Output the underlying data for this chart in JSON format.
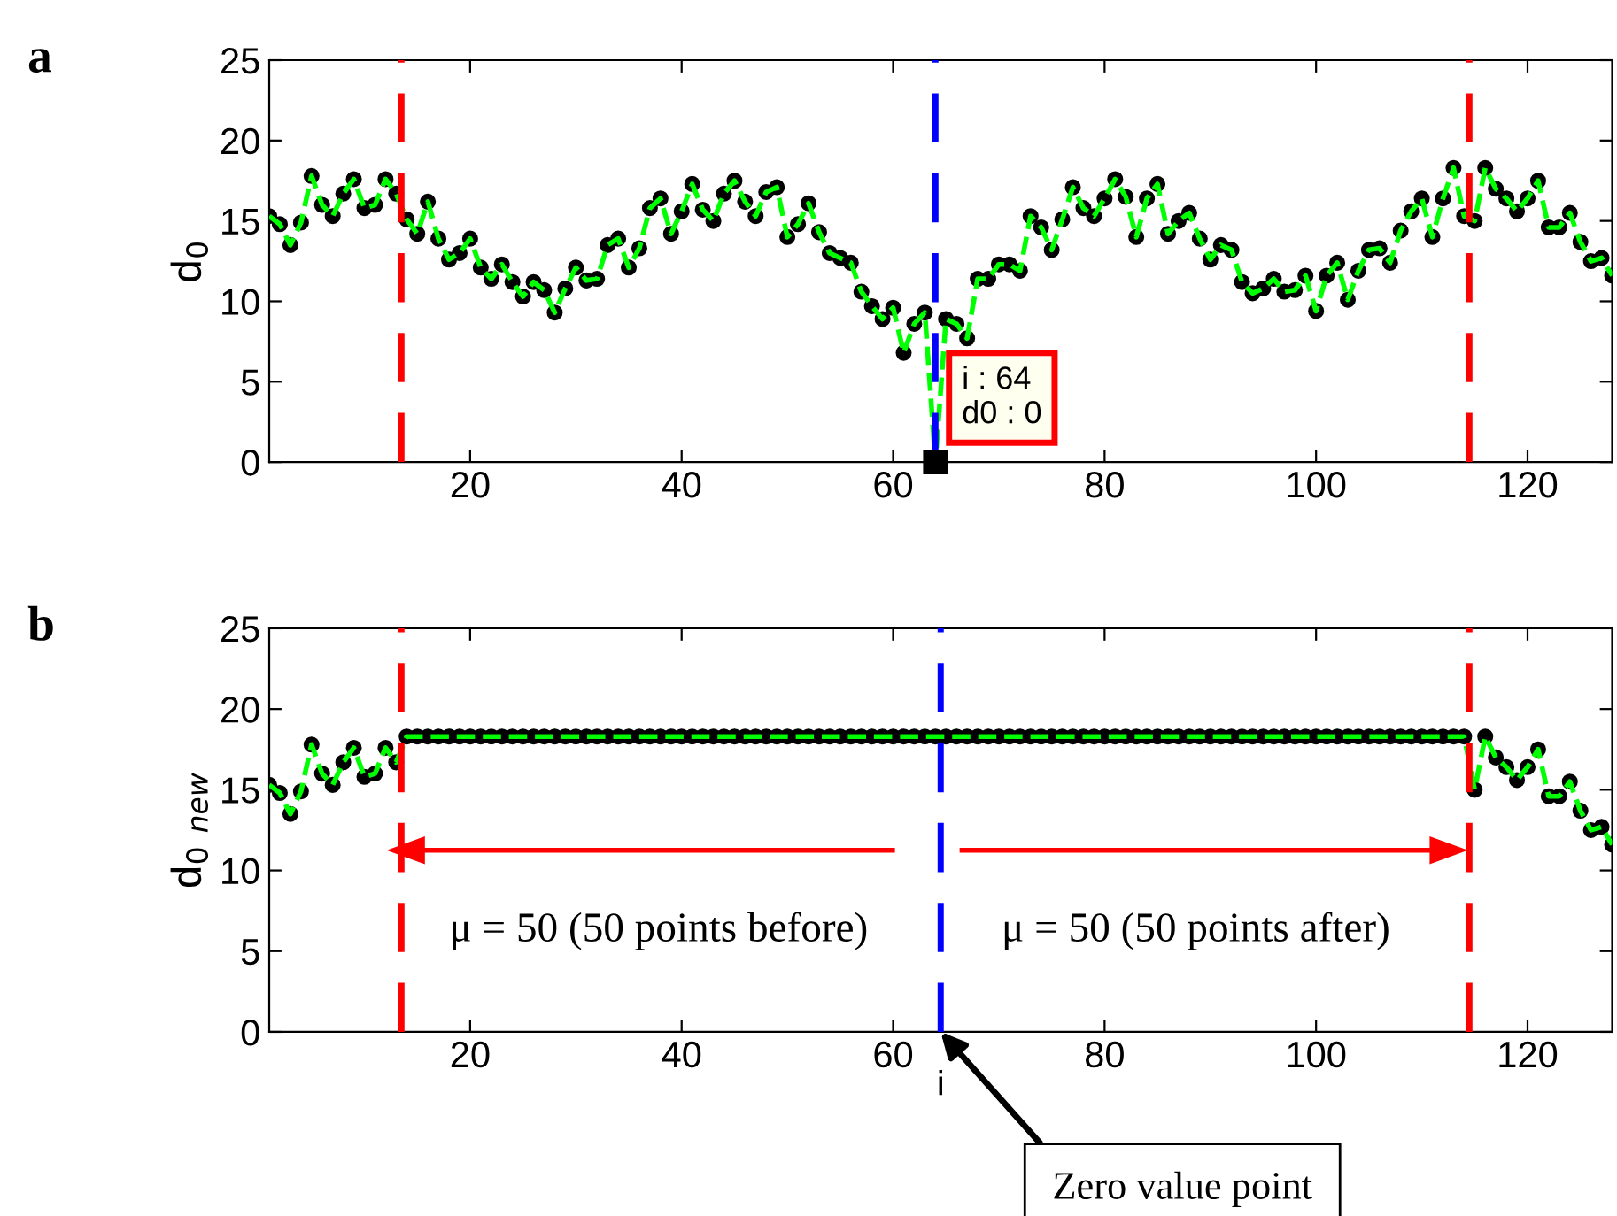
{
  "chart_data": [
    {
      "type": "line",
      "ylabel": "d$_{0}$",
      "x": [
        1,
        2,
        3,
        4,
        5,
        6,
        7,
        8,
        9,
        10,
        11,
        12,
        13,
        14,
        15,
        16,
        17,
        18,
        19,
        20,
        21,
        22,
        23,
        24,
        25,
        26,
        27,
        28,
        29,
        30,
        31,
        32,
        33,
        34,
        35,
        36,
        37,
        38,
        39,
        40,
        41,
        42,
        43,
        44,
        45,
        46,
        47,
        48,
        49,
        50,
        51,
        52,
        53,
        54,
        55,
        56,
        57,
        58,
        59,
        60,
        61,
        62,
        63,
        64,
        65,
        66,
        67,
        68,
        69,
        70,
        71,
        72,
        73,
        74,
        75,
        76,
        77,
        78,
        79,
        80,
        81,
        82,
        83,
        84,
        85,
        86,
        87,
        88,
        89,
        90,
        91,
        92,
        93,
        94,
        95,
        96,
        97,
        98,
        99,
        100,
        101,
        102,
        103,
        104,
        105,
        106,
        107,
        108,
        109,
        110,
        111,
        112,
        113,
        114,
        115,
        116,
        117,
        118,
        119,
        120,
        121,
        122,
        123,
        124,
        125,
        126,
        127,
        128
      ],
      "series": [
        {
          "color": "#00ff00",
          "values": [
            15.3,
            14.8,
            13.5,
            14.9,
            17.8,
            16.0,
            15.3,
            16.7,
            17.6,
            15.8,
            16.0,
            17.6,
            16.7,
            15.1,
            14.2,
            16.2,
            13.9,
            12.6,
            13.0,
            13.9,
            12.1,
            11.4,
            12.3,
            11.2,
            10.3,
            11.2,
            10.7,
            9.3,
            10.8,
            12.1,
            11.3,
            11.4,
            13.5,
            13.9,
            12.1,
            13.3,
            15.8,
            16.4,
            14.2,
            15.6,
            17.3,
            15.7,
            15.0,
            16.7,
            17.5,
            16.2,
            15.3,
            16.8,
            17.1,
            14.0,
            14.8,
            16.1,
            14.3,
            13.0,
            12.7,
            12.4,
            10.6,
            9.7,
            8.9,
            9.6,
            6.8,
            8.6,
            9.3,
            0,
            8.9,
            8.6,
            7.7,
            11.4,
            11.4,
            12.3,
            12.3,
            11.9,
            15.3,
            14.6,
            13.2,
            15.1,
            17.1,
            15.8,
            15.3,
            16.4,
            17.6,
            16.5,
            14.0,
            16.4,
            17.3,
            14.2,
            15.0,
            15.5,
            13.9,
            12.6,
            13.5,
            13.2,
            11.2,
            10.5,
            10.8,
            11.4,
            10.6,
            10.7,
            11.6,
            9.4,
            11.6,
            12.4,
            10.1,
            11.9,
            13.2,
            13.3,
            12.4,
            14.4,
            15.6,
            16.4,
            14.0,
            16.4,
            18.3,
            15.3,
            15.0,
            18.3,
            17.0,
            16.4,
            15.6,
            16.4,
            17.5,
            14.6,
            14.6,
            15.5,
            13.7,
            12.5,
            12.7,
            11.6
          ]
        }
      ],
      "marker": "circle",
      "line_style": "dashed",
      "grid": false,
      "xlim": [
        1,
        128
      ],
      "xticks": [
        20,
        40,
        60,
        80,
        100,
        120
      ],
      "ylim": [
        0,
        25
      ],
      "yticks": [
        0,
        5,
        10,
        15,
        20,
        25
      ],
      "ref_lines": [
        {
          "axis": "x",
          "value": 13.5,
          "color": "#ff0000",
          "line_style": "dashed"
        },
        {
          "axis": "x",
          "value": 64,
          "color": "#0000ff",
          "line_style": "dashed"
        },
        {
          "axis": "x",
          "value": 114.5,
          "color": "#ff0000",
          "line_style": "dashed"
        }
      ],
      "annotations": [
        "a",
        {
          "text": "i : 64\nd0 : 0",
          "x": 64,
          "y": 0
        }
      ]
    },
    {
      "type": "line",
      "ylabel": "d$_{0}$ $_{new}$",
      "xlabel": "i",
      "x": [
        1,
        2,
        3,
        4,
        5,
        6,
        7,
        8,
        9,
        10,
        11,
        12,
        13,
        14,
        15,
        16,
        17,
        18,
        19,
        20,
        21,
        22,
        23,
        24,
        25,
        26,
        27,
        28,
        29,
        30,
        31,
        32,
        33,
        34,
        35,
        36,
        37,
        38,
        39,
        40,
        41,
        42,
        43,
        44,
        45,
        46,
        47,
        48,
        49,
        50,
        51,
        52,
        53,
        54,
        55,
        56,
        57,
        58,
        59,
        60,
        61,
        62,
        63,
        64,
        65,
        66,
        67,
        68,
        69,
        70,
        71,
        72,
        73,
        74,
        75,
        76,
        77,
        78,
        79,
        80,
        81,
        82,
        83,
        84,
        85,
        86,
        87,
        88,
        89,
        90,
        91,
        92,
        93,
        94,
        95,
        96,
        97,
        98,
        99,
        100,
        101,
        102,
        103,
        104,
        105,
        106,
        107,
        108,
        109,
        110,
        111,
        112,
        113,
        114,
        115,
        116,
        117,
        118,
        119,
        120,
        121,
        122,
        123,
        124,
        125,
        126,
        127,
        128
      ],
      "series": [
        {
          "color": "#00ff00",
          "values": [
            15.3,
            14.8,
            13.5,
            14.9,
            17.8,
            16.0,
            15.3,
            16.7,
            17.6,
            15.8,
            16.0,
            17.6,
            16.7,
            18.3,
            18.3,
            18.3,
            18.3,
            18.3,
            18.3,
            18.3,
            18.3,
            18.3,
            18.3,
            18.3,
            18.3,
            18.3,
            18.3,
            18.3,
            18.3,
            18.3,
            18.3,
            18.3,
            18.3,
            18.3,
            18.3,
            18.3,
            18.3,
            18.3,
            18.3,
            18.3,
            18.3,
            18.3,
            18.3,
            18.3,
            18.3,
            18.3,
            18.3,
            18.3,
            18.3,
            18.3,
            18.3,
            18.3,
            18.3,
            18.3,
            18.3,
            18.3,
            18.3,
            18.3,
            18.3,
            18.3,
            18.3,
            18.3,
            18.3,
            18.3,
            18.3,
            18.3,
            18.3,
            18.3,
            18.3,
            18.3,
            18.3,
            18.3,
            18.3,
            18.3,
            18.3,
            18.3,
            18.3,
            18.3,
            18.3,
            18.3,
            18.3,
            18.3,
            18.3,
            18.3,
            18.3,
            18.3,
            18.3,
            18.3,
            18.3,
            18.3,
            18.3,
            18.3,
            18.3,
            18.3,
            18.3,
            18.3,
            18.3,
            18.3,
            18.3,
            18.3,
            18.3,
            18.3,
            18.3,
            18.3,
            18.3,
            18.3,
            18.3,
            18.3,
            18.3,
            18.3,
            18.3,
            18.3,
            18.3,
            18.3,
            15.0,
            18.3,
            17.0,
            16.4,
            15.6,
            16.4,
            17.5,
            14.6,
            14.6,
            15.5,
            13.7,
            12.5,
            12.7,
            11.6
          ]
        }
      ],
      "marker": "circle",
      "line_style": "dashed",
      "grid": false,
      "xlim": [
        1,
        128
      ],
      "xticks": [
        20,
        40,
        60,
        80,
        100,
        120
      ],
      "ylim": [
        0,
        25
      ],
      "yticks": [
        0,
        5,
        10,
        15,
        20,
        25
      ],
      "ref_lines": [
        {
          "axis": "x",
          "value": 13.5,
          "color": "#ff0000",
          "line_style": "dashed"
        },
        {
          "axis": "x",
          "value": 64.5,
          "color": "#0000ff",
          "line_style": "dashed"
        },
        {
          "axis": "x",
          "value": 114.5,
          "color": "#ff0000",
          "line_style": "dashed"
        }
      ],
      "annotations": [
        "b",
        "μ = 50 (50 points before)",
        "μ = 50 (50 points after)",
        {
          "text": "Zero value point",
          "x": 64.5,
          "y": 0
        }
      ]
    }
  ]
}
